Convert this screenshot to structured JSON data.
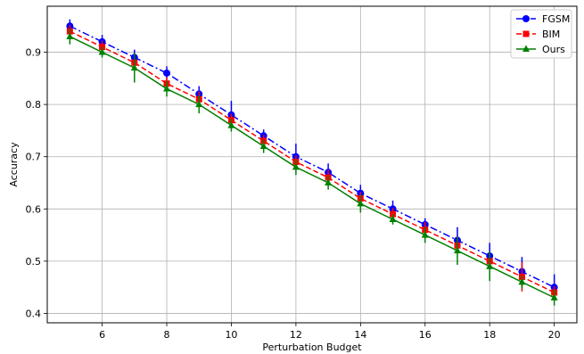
{
  "chart_data": {
    "type": "line",
    "title": "",
    "xlabel": "Perturbation Budget",
    "ylabel": "Accuracy",
    "xlim": [
      4.3,
      20.7
    ],
    "ylim": [
      0.382,
      0.988
    ],
    "xticks": [
      6,
      8,
      10,
      12,
      14,
      16,
      18,
      20
    ],
    "yticks": [
      0.4,
      0.5,
      0.6,
      0.7,
      0.8,
      0.9
    ],
    "grid": true,
    "legend_position": "top-right",
    "x": [
      5,
      6,
      7,
      8,
      9,
      10,
      11,
      12,
      13,
      14,
      15,
      16,
      17,
      18,
      19,
      20
    ],
    "series": [
      {
        "name": "FGSM",
        "color": "#0000ff",
        "marker": "circle",
        "linestyle": "dashdot",
        "values": [
          0.95,
          0.92,
          0.89,
          0.86,
          0.82,
          0.78,
          0.74,
          0.7,
          0.67,
          0.63,
          0.6,
          0.57,
          0.54,
          0.51,
          0.48,
          0.45
        ],
        "errors": [
          0.013,
          0.013,
          0.015,
          0.013,
          0.015,
          0.027,
          0.012,
          0.025,
          0.017,
          0.016,
          0.016,
          0.012,
          0.025,
          0.025,
          0.028,
          0.025
        ]
      },
      {
        "name": "BIM",
        "color": "#ff0000",
        "marker": "square",
        "linestyle": "dashed",
        "values": [
          0.94,
          0.91,
          0.88,
          0.84,
          0.81,
          0.77,
          0.73,
          0.69,
          0.66,
          0.62,
          0.59,
          0.56,
          0.53,
          0.5,
          0.47,
          0.44
        ],
        "errors": [
          0.012,
          0.012,
          0.012,
          0.012,
          0.015,
          0.012,
          0.012,
          0.012,
          0.015,
          0.012,
          0.012,
          0.015,
          0.012,
          0.015,
          0.028,
          0.012
        ]
      },
      {
        "name": "Ours",
        "color": "#008000",
        "marker": "triangle",
        "linestyle": "solid",
        "values": [
          0.93,
          0.9,
          0.87,
          0.83,
          0.8,
          0.76,
          0.72,
          0.68,
          0.65,
          0.61,
          0.58,
          0.55,
          0.52,
          0.49,
          0.46,
          0.43
        ],
        "errors": [
          0.015,
          0.01,
          0.028,
          0.015,
          0.017,
          0.012,
          0.013,
          0.015,
          0.013,
          0.017,
          0.01,
          0.015,
          0.027,
          0.028,
          0.012,
          0.015
        ]
      }
    ]
  }
}
